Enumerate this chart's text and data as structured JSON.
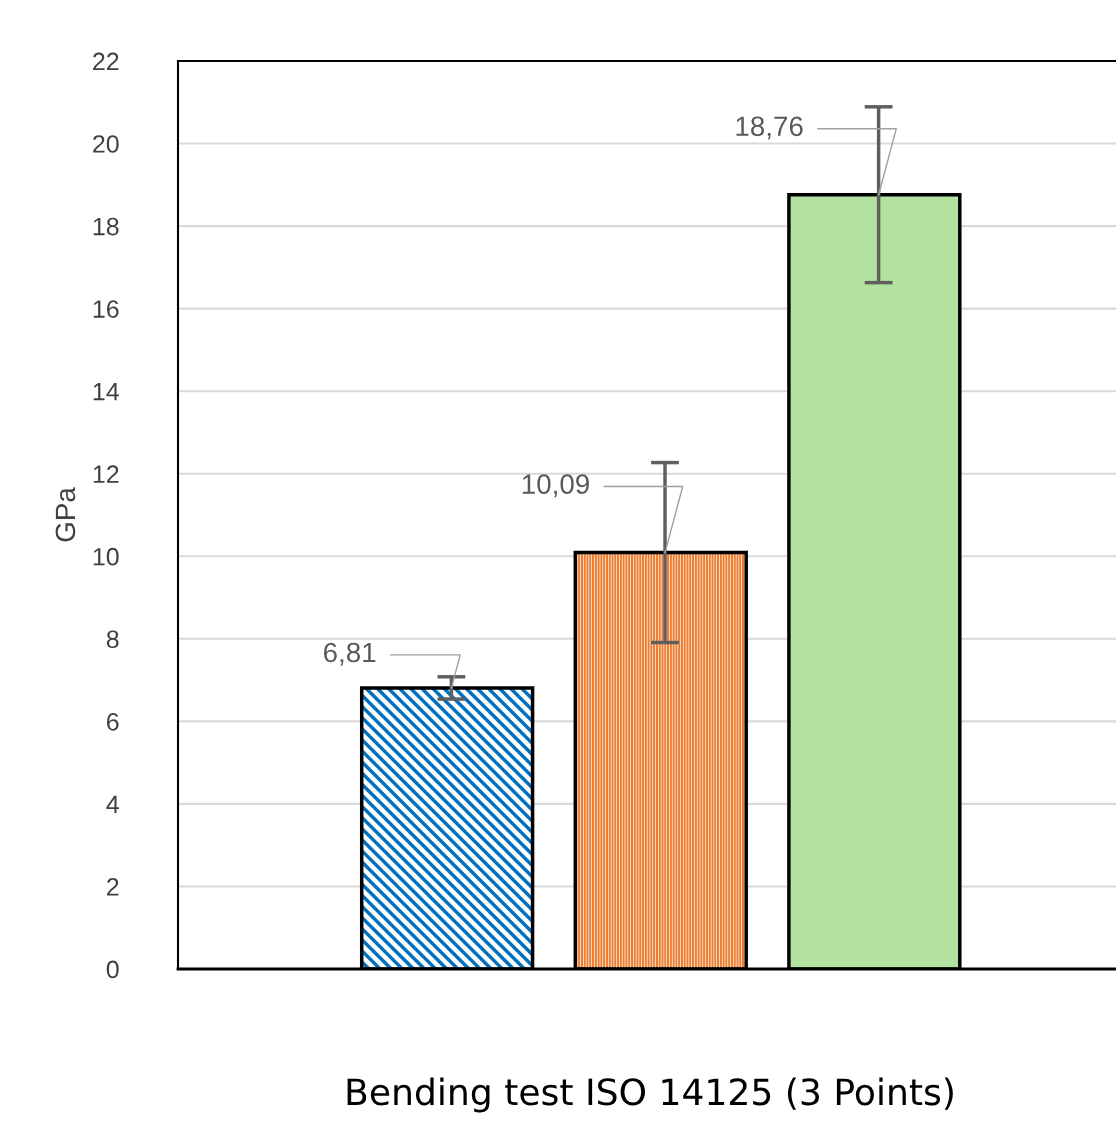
{
  "chart_data": {
    "type": "bar",
    "xlabel": "Bending test ISO 14125 (3 Points)",
    "ylabel": "GPa",
    "categories": [
      null,
      null,
      null
    ],
    "values": [
      6.81,
      10.09,
      18.76
    ],
    "colors": [
      "#0070c0",
      "#ed7d31",
      "#b3e2a0"
    ],
    "errors": [
      0.27,
      2.18,
      2.13
    ],
    "value_labels": [
      "6,81",
      "10,09",
      "18,76"
    ],
    "ylim": [
      0,
      22
    ],
    "yticks": [
      0,
      2,
      4,
      6,
      8,
      10,
      12,
      14,
      16,
      18,
      20,
      22
    ],
    "grid": "y",
    "legend": false
  }
}
